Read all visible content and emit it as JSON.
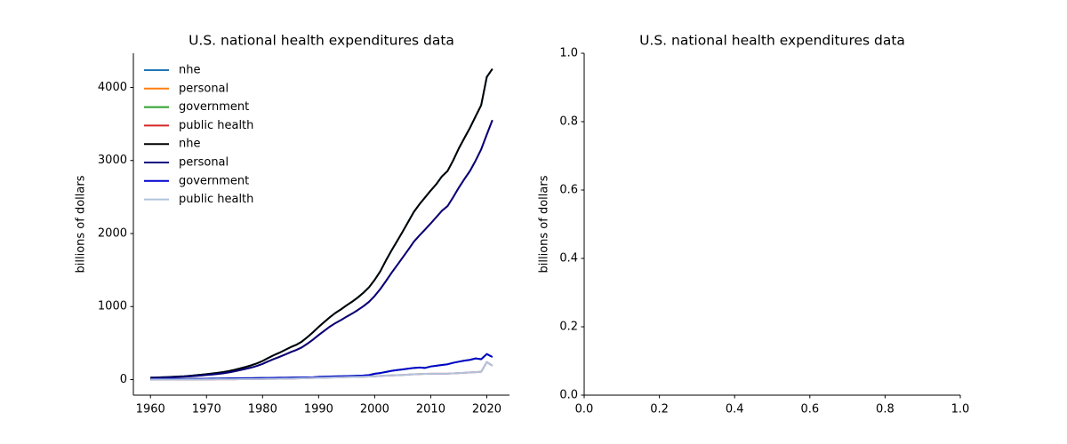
{
  "chart_data": [
    {
      "type": "line",
      "title": "U.S. national health expenditures data",
      "ylabel": "billions of dollars",
      "x": [
        1960,
        1961,
        1962,
        1963,
        1964,
        1965,
        1966,
        1967,
        1968,
        1969,
        1970,
        1971,
        1972,
        1973,
        1974,
        1975,
        1976,
        1977,
        1978,
        1979,
        1980,
        1981,
        1982,
        1983,
        1984,
        1985,
        1986,
        1987,
        1988,
        1989,
        1990,
        1991,
        1992,
        1993,
        1994,
        1995,
        1996,
        1997,
        1998,
        1999,
        2000,
        2001,
        2002,
        2003,
        2004,
        2005,
        2006,
        2007,
        2008,
        2009,
        2010,
        2011,
        2012,
        2013,
        2014,
        2015,
        2016,
        2017,
        2018,
        2019,
        2020,
        2021
      ],
      "series": [
        {
          "name": "nhe",
          "color": "#1f77b4",
          "values": [
            27,
            29,
            32,
            34,
            38,
            42,
            46,
            52,
            59,
            66,
            74,
            83,
            93,
            103,
            117,
            134,
            153,
            174,
            196,
            222,
            255,
            296,
            334,
            368,
            406,
            444,
            476,
            520,
            582,
            649,
            721,
            788,
            854,
            913,
            962,
            1017,
            1068,
            1125,
            1190,
            1265,
            1366,
            1482,
            1630,
            1767,
            1896,
            2027,
            2163,
            2298,
            2402,
            2495,
            2589,
            2676,
            2783,
            2856,
            3001,
            3164,
            3307,
            3447,
            3604,
            3757,
            4144,
            4255
          ]
        },
        {
          "name": "personal",
          "color": "#ff7f0e",
          "values": [
            23,
            24,
            27,
            29,
            32,
            35,
            39,
            44,
            50,
            56,
            63,
            70,
            78,
            87,
            99,
            114,
            130,
            147,
            165,
            187,
            215,
            250,
            282,
            311,
            342,
            376,
            405,
            441,
            492,
            548,
            610,
            668,
            725,
            774,
            816,
            862,
            905,
            953,
            1005,
            1066,
            1145,
            1240,
            1348,
            1461,
            1566,
            1672,
            1779,
            1890,
            1975,
            2056,
            2139,
            2225,
            2312,
            2375,
            2497,
            2627,
            2745,
            2857,
            2997,
            3153,
            3356,
            3553
          ]
        },
        {
          "name": "government",
          "color": "#2ca02c",
          "values": [
            5,
            5,
            6,
            6,
            7,
            7,
            8,
            9,
            10,
            11,
            12,
            13,
            14,
            15,
            16,
            17,
            18,
            19,
            20,
            21,
            22,
            23,
            24,
            25,
            26,
            27,
            28,
            29,
            30,
            32,
            38,
            40,
            42,
            44,
            46,
            48,
            50,
            53,
            56,
            62,
            80,
            90,
            105,
            120,
            130,
            140,
            150,
            160,
            165,
            160,
            180,
            190,
            200,
            210,
            230,
            245,
            260,
            270,
            290,
            280,
            350,
            310
          ]
        },
        {
          "name": "public health",
          "color": "#d62728",
          "values": [
            1,
            1,
            1,
            1,
            1,
            2,
            2,
            2,
            2,
            2,
            3,
            3,
            4,
            4,
            5,
            5,
            6,
            7,
            7,
            8,
            9,
            10,
            11,
            12,
            13,
            14,
            16,
            18,
            20,
            22,
            24,
            26,
            28,
            30,
            32,
            34,
            36,
            38,
            40,
            43,
            46,
            50,
            54,
            58,
            61,
            64,
            68,
            72,
            76,
            79,
            80,
            80,
            81,
            82,
            85,
            89,
            93,
            98,
            102,
            108,
            240,
            190
          ]
        },
        {
          "name": "nhe",
          "color": "#000000",
          "values": [
            27,
            29,
            32,
            34,
            38,
            42,
            46,
            52,
            59,
            66,
            74,
            83,
            93,
            103,
            117,
            134,
            153,
            174,
            196,
            222,
            255,
            296,
            334,
            368,
            406,
            444,
            476,
            520,
            582,
            649,
            721,
            788,
            854,
            913,
            962,
            1017,
            1068,
            1125,
            1190,
            1265,
            1366,
            1482,
            1630,
            1767,
            1896,
            2027,
            2163,
            2298,
            2402,
            2495,
            2589,
            2676,
            2783,
            2856,
            3001,
            3164,
            3307,
            3447,
            3604,
            3757,
            4144,
            4255
          ]
        },
        {
          "name": "personal",
          "color": "#000080",
          "values": [
            23,
            24,
            27,
            29,
            32,
            35,
            39,
            44,
            50,
            56,
            63,
            70,
            78,
            87,
            99,
            114,
            130,
            147,
            165,
            187,
            215,
            250,
            282,
            311,
            342,
            376,
            405,
            441,
            492,
            548,
            610,
            668,
            725,
            774,
            816,
            862,
            905,
            953,
            1005,
            1066,
            1145,
            1240,
            1348,
            1461,
            1566,
            1672,
            1779,
            1890,
            1975,
            2056,
            2139,
            2225,
            2312,
            2375,
            2497,
            2627,
            2745,
            2857,
            2997,
            3153,
            3356,
            3553
          ]
        },
        {
          "name": "government",
          "color": "#0000cd",
          "values": [
            5,
            5,
            6,
            6,
            7,
            7,
            8,
            9,
            10,
            11,
            12,
            13,
            14,
            15,
            16,
            17,
            18,
            19,
            20,
            21,
            22,
            23,
            24,
            25,
            26,
            27,
            28,
            29,
            30,
            32,
            38,
            40,
            42,
            44,
            46,
            48,
            50,
            53,
            56,
            62,
            80,
            90,
            105,
            120,
            130,
            140,
            150,
            160,
            165,
            160,
            180,
            190,
            200,
            210,
            230,
            245,
            260,
            270,
            290,
            280,
            350,
            310
          ]
        },
        {
          "name": "public health",
          "color": "#b0c4de",
          "values": [
            1,
            1,
            1,
            1,
            1,
            2,
            2,
            2,
            2,
            2,
            3,
            3,
            4,
            4,
            5,
            5,
            6,
            7,
            7,
            8,
            9,
            10,
            11,
            12,
            13,
            14,
            16,
            18,
            20,
            22,
            24,
            26,
            28,
            30,
            32,
            34,
            36,
            38,
            40,
            43,
            46,
            50,
            54,
            58,
            61,
            64,
            68,
            72,
            76,
            79,
            80,
            80,
            81,
            82,
            85,
            89,
            93,
            98,
            102,
            108,
            240,
            190
          ]
        }
      ],
      "xlim": [
        1956.95,
        2024.05
      ],
      "xticks": [
        1960,
        1970,
        1980,
        1990,
        2000,
        2010,
        2020
      ],
      "ylim": [
        -213,
        4468
      ],
      "yticks": [
        0,
        1000,
        2000,
        3000,
        4000
      ],
      "legend": "upper left",
      "legend_frame": false,
      "grid": false
    },
    {
      "type": "line",
      "title": "U.S. national health expenditures data",
      "ylabel": "billions of dollars",
      "xlim": [
        0,
        1
      ],
      "xticks": [
        {
          "value": 0,
          "label": "0.0"
        },
        {
          "value": 0.2,
          "label": "0.2"
        },
        {
          "value": 0.4,
          "label": "0.4"
        },
        {
          "value": 0.6,
          "label": "0.6"
        },
        {
          "value": 0.8,
          "label": "0.8"
        },
        {
          "value": 1,
          "label": "1.0"
        }
      ],
      "ylim": [
        0,
        1
      ],
      "yticks": [
        {
          "value": 0,
          "label": "0.0"
        },
        {
          "value": 0.2,
          "label": "0.2"
        },
        {
          "value": 0.4,
          "label": "0.4"
        },
        {
          "value": 0.6,
          "label": "0.6"
        },
        {
          "value": 0.8,
          "label": "0.8"
        },
        {
          "value": 1,
          "label": "1.0"
        }
      ],
      "grid": false
    }
  ]
}
